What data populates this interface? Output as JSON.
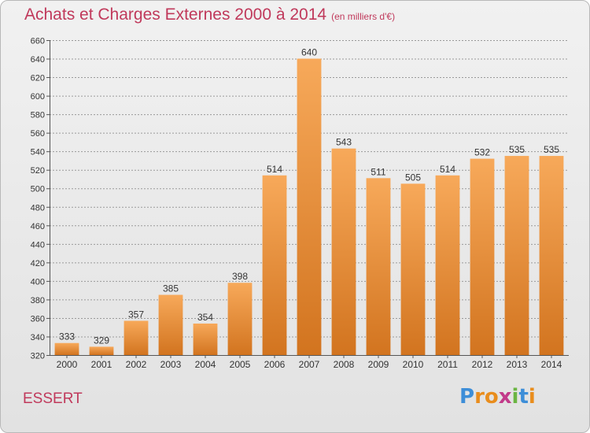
{
  "header": {
    "title": "Achats et Charges Externes 2000 à 2014",
    "subtitle": "(en milliers d'€)"
  },
  "footer": {
    "commune": "ESSERT",
    "logo": [
      "P",
      "r",
      "o",
      "x",
      "i",
      "t",
      "i"
    ]
  },
  "colors": {
    "title": "#c0395b",
    "bar_top": "#f7a95a",
    "bar_bottom": "#d2741f",
    "grid": "#9a9a9a",
    "logo": [
      "#3d8ed8",
      "#e98d1d",
      "#e98d1d",
      "#c23a8a",
      "#6bb543",
      "#3d8ed8",
      "#e98d1d"
    ]
  },
  "chart_data": {
    "type": "bar",
    "categories": [
      "2000",
      "2001",
      "2002",
      "2003",
      "2004",
      "2005",
      "2006",
      "2007",
      "2008",
      "2009",
      "2010",
      "2011",
      "2012",
      "2013",
      "2014"
    ],
    "values": [
      333,
      329,
      357,
      385,
      354,
      398,
      514,
      640,
      543,
      511,
      505,
      514,
      532,
      535,
      535
    ],
    "ylim": [
      320,
      660
    ],
    "yticks": [
      320,
      340,
      360,
      380,
      400,
      420,
      440,
      460,
      480,
      500,
      520,
      540,
      560,
      580,
      600,
      620,
      640,
      660
    ],
    "grid": true
  }
}
